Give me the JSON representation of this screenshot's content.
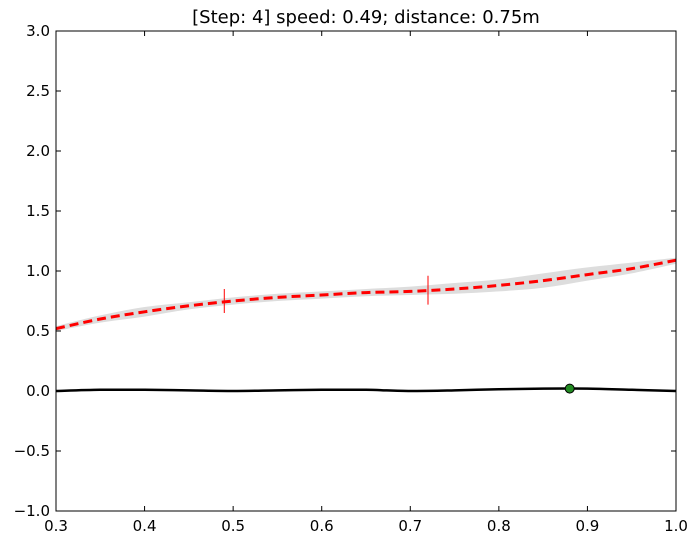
{
  "chart_data": {
    "type": "line",
    "title": "[Step: 4] speed: 0.49; distance: 0.75m",
    "xlabel": "",
    "ylabel": "",
    "xlim": [
      0.3,
      1.0
    ],
    "ylim": [
      -1.0,
      3.0
    ],
    "xticks": [
      0.3,
      0.4,
      0.5,
      0.6,
      0.7,
      0.8,
      0.9,
      1.0
    ],
    "xtick_labels": [
      "0.3",
      "0.4",
      "0.5",
      "0.6",
      "0.7",
      "0.8",
      "0.9",
      "1.0"
    ],
    "yticks": [
      -1.0,
      -0.5,
      0.0,
      0.5,
      1.0,
      1.5,
      2.0,
      2.5,
      3.0
    ],
    "ytick_labels": [
      "−1.0",
      "−0.5",
      "0.0",
      "0.5",
      "1.0",
      "1.5",
      "2.0",
      "2.5",
      "3.0"
    ],
    "grid": false,
    "legend": "none",
    "series": [
      {
        "style": "solid",
        "color": "#000000",
        "x": [
          0.3,
          0.35,
          0.4,
          0.45,
          0.5,
          0.55,
          0.6,
          0.65,
          0.7,
          0.75,
          0.8,
          0.85,
          0.9,
          0.95,
          1.0
        ],
        "y": [
          0.0,
          0.01,
          0.01,
          0.005,
          0.0,
          0.005,
          0.01,
          0.01,
          0.0,
          0.005,
          0.015,
          0.02,
          0.02,
          0.01,
          0.0
        ]
      },
      {
        "style": "dashed",
        "color": "#ff0000",
        "x": [
          0.3,
          0.35,
          0.4,
          0.45,
          0.5,
          0.55,
          0.6,
          0.65,
          0.7,
          0.75,
          0.8,
          0.85,
          0.9,
          0.95,
          1.0
        ],
        "y": [
          0.52,
          0.6,
          0.66,
          0.71,
          0.75,
          0.78,
          0.8,
          0.82,
          0.83,
          0.85,
          0.88,
          0.92,
          0.97,
          1.02,
          1.09
        ],
        "band_lower": [
          0.5,
          0.57,
          0.62,
          0.68,
          0.72,
          0.75,
          0.77,
          0.79,
          0.8,
          0.81,
          0.83,
          0.86,
          0.92,
          0.98,
          1.06
        ],
        "band_upper": [
          0.54,
          0.63,
          0.7,
          0.74,
          0.78,
          0.81,
          0.83,
          0.85,
          0.87,
          0.9,
          0.93,
          0.98,
          1.03,
          1.07,
          1.11
        ],
        "band_color": "#dddddd"
      }
    ],
    "markers": [
      {
        "type": "point",
        "x": 0.88,
        "y": 0.02,
        "color": "#228b22"
      },
      {
        "type": "vtick",
        "x": 0.49,
        "y": 0.75,
        "half_height": 0.1,
        "color": "#ff0000"
      },
      {
        "type": "vtick",
        "x": 0.72,
        "y": 0.84,
        "half_height": 0.12,
        "color": "#ff0000"
      }
    ]
  }
}
